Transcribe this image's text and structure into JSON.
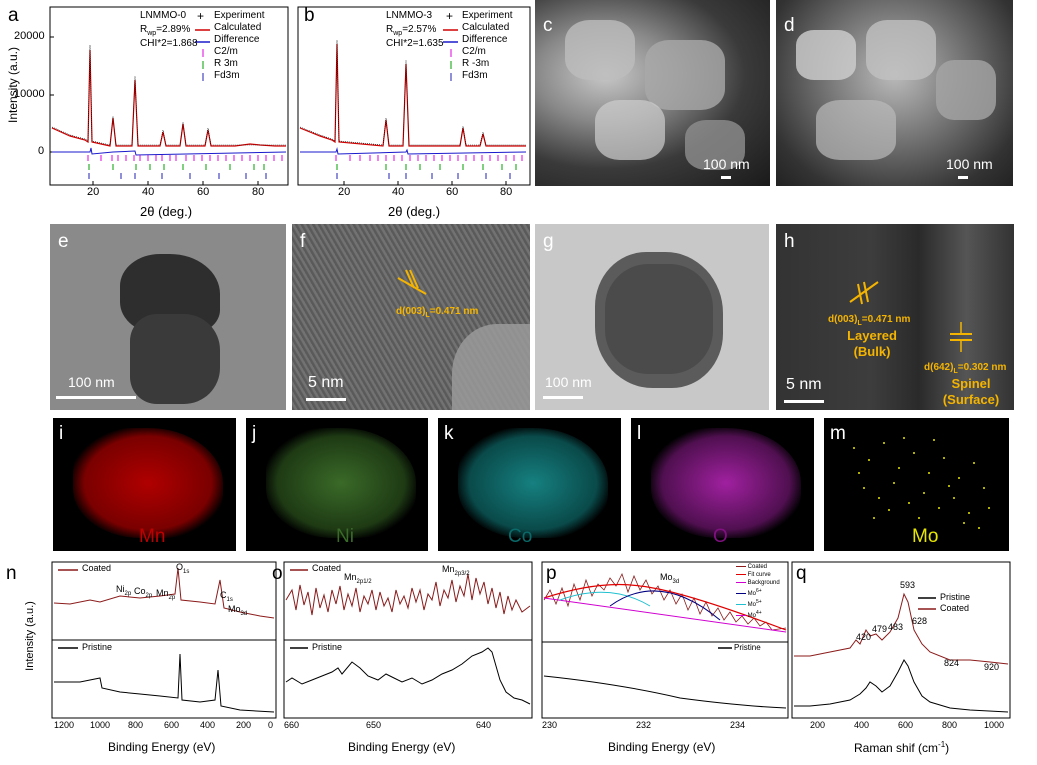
{
  "figure": {
    "row1": {
      "a": {
        "label": "a",
        "sample": "LNMMO-0",
        "rwp": "R",
        "rwp_sub": "wp",
        "rwp_val": "=2.89%",
        "chi": "CHI*2=1.868",
        "legend": [
          "Experiment",
          "Calculated",
          "Difference",
          "C2/m",
          "R 3m",
          "Fd3m"
        ],
        "yaxis_label": "Intensity (a.u.)",
        "yticks": [
          "20000",
          "10000",
          "0"
        ],
        "xticks": [
          "20",
          "40",
          "60",
          "80"
        ],
        "xlabel": "2θ (deg.)"
      },
      "b": {
        "label": "b",
        "sample": "LNMMO-3",
        "rwp": "R",
        "rwp_sub": "wp",
        "rwp_val": "=2.57%",
        "chi": "CHI*2=1.635",
        "legend": [
          "Experiment",
          "Calculated",
          "Difference",
          "C2/m",
          "R -3m",
          "Fd3m"
        ],
        "xticks": [
          "20",
          "40",
          "60",
          "80"
        ],
        "xlabel": "2θ (deg.)"
      },
      "c": {
        "label": "c",
        "scale": "100 nm"
      },
      "d": {
        "label": "d",
        "scale": "100 nm"
      }
    },
    "row2": {
      "e": {
        "label": "e",
        "scale": "100 nm"
      },
      "f": {
        "label": "f",
        "scale": "5 nm",
        "annotation": "d(003)",
        "annotation_sub": "L",
        "annotation_val": "=0.471 nm"
      },
      "g": {
        "label": "g",
        "scale": "100 nm"
      },
      "h": {
        "label": "h",
        "scale": "5 nm",
        "ann1": "d(003)",
        "ann1_sub": "L",
        "ann1_val": "=0.471 nm",
        "layer_label": "Layered",
        "layer_sub": "(Bulk)",
        "ann2": "d(642)",
        "ann2_sub": "L",
        "ann2_val": "=0.302 nm",
        "spinel_label": "Spinel",
        "spinel_sub": "(Surface)"
      }
    },
    "row3": [
      {
        "label": "i",
        "element": "Mn",
        "color": "#c00000"
      },
      {
        "label": "j",
        "element": "Ni",
        "color": "#3a6a28"
      },
      {
        "label": "k",
        "element": "Co",
        "color": "#0a6a6a"
      },
      {
        "label": "l",
        "element": "O",
        "color": "#801080"
      },
      {
        "label": "m",
        "element": "Mo",
        "color": "#e6e600"
      }
    ],
    "row4": {
      "n": {
        "label": "n",
        "coated": "Coated",
        "pristine": "Pristine",
        "peaks": {
          "o1s": "O",
          "o1s_sub": "1s",
          "ni": "Ni",
          "ni_sub": "2p",
          "co": "Co",
          "co_sub": "2p",
          "mn": "Mn",
          "mn_sub": "2p",
          "c1s": "C",
          "c1s_sub": "1s",
          "mo": "Mo",
          "mo_sub": "3d"
        },
        "yaxis_label": "Intensity (a.u.)",
        "xticks": [
          "1200",
          "1000",
          "800",
          "600",
          "400",
          "200",
          "0"
        ],
        "xlabel": "Binding Energy (eV)"
      },
      "o": {
        "label": "o",
        "coated": "Coated",
        "pristine": "Pristine",
        "mn1": "Mn",
        "mn1_sub": "2p1/2",
        "mn2": "Mn",
        "mn2_sub": "2p3/2",
        "xticks": [
          "660",
          "650",
          "640"
        ],
        "xlabel": "Binding Energy (eV)"
      },
      "p": {
        "label": "p",
        "mo": "Mo",
        "mo_sub": "3d",
        "legend": [
          "Coated",
          "Fit curve",
          "Background",
          "Mo",
          "Mo",
          "Mo"
        ],
        "legend_sup": [
          "",
          "",
          "",
          "6+",
          "5+",
          "4+"
        ],
        "pristine": "Pristine",
        "xticks": [
          "230",
          "232",
          "234"
        ],
        "xlabel": "Binding Energy (eV)"
      },
      "q": {
        "label": "q",
        "peaks": [
          "593",
          "628",
          "420",
          "479",
          "483",
          "824",
          "920"
        ],
        "legend": [
          "Pristine",
          "Coated"
        ],
        "xticks": [
          "200",
          "400",
          "600",
          "800",
          "1000"
        ],
        "xlabel": "Raman shif (cm",
        "xlabel_sup": "-1",
        "xlabel_end": ")"
      }
    }
  }
}
